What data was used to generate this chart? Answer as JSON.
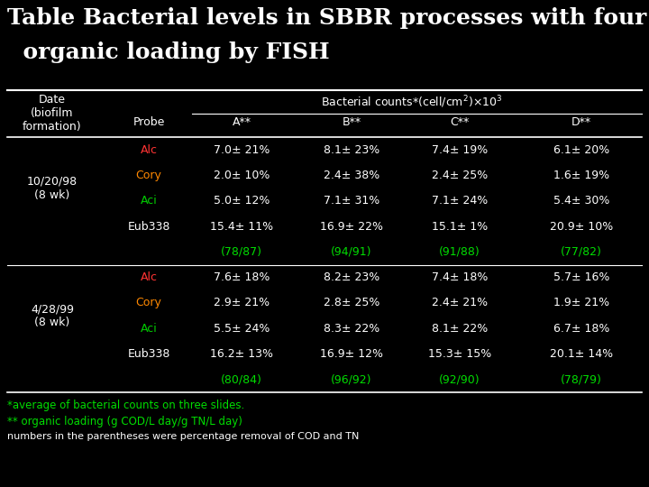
{
  "title_line1": "Table Bacterial levels in SBBR processes with four",
  "title_line2": "  organic loading by FISH",
  "bg_color": "#000000",
  "white": "#ffffff",
  "green_color": "#00dd00",
  "col_headers": [
    "A**",
    "B**",
    "C**",
    "D**"
  ],
  "footnote1": "*average of bacterial counts on three slides.",
  "footnote2": "** organic loading (g COD/L day/g TN/L day)",
  "footnote3": "numbers in the parentheses were percentage removal of COD and TN",
  "rows": [
    {
      "probe": "Alc",
      "probe_color": "#ff3333",
      "A": "7.0± 21%",
      "B": "8.1± 23%",
      "C": "7.4± 19%",
      "D": "6.1± 20%"
    },
    {
      "probe": "Cory",
      "probe_color": "#ff8800",
      "A": "2.0± 10%",
      "B": "2.4± 38%",
      "C": "2.4± 25%",
      "D": "1.6± 19%"
    },
    {
      "probe": "Aci",
      "probe_color": "#00cc00",
      "A": "5.0± 12%",
      "B": "7.1± 31%",
      "C": "7.1± 24%",
      "D": "5.4± 30%"
    },
    {
      "probe": "Eub338",
      "probe_color": "#ffffff",
      "A": "15.4± 11%",
      "B": "16.9± 22%",
      "C": "15.1± 1%",
      "D": "20.9± 10%"
    },
    {
      "probe": "",
      "probe_color": "#00cc00",
      "A": "(78/87)",
      "B": "(94/91)",
      "C": "(91/88)",
      "D": "(77/82)",
      "is_paren": true
    },
    {
      "probe": "Alc",
      "probe_color": "#ff3333",
      "A": "7.6± 18%",
      "B": "8.2± 23%",
      "C": "7.4± 18%",
      "D": "5.7± 16%"
    },
    {
      "probe": "Cory",
      "probe_color": "#ff8800",
      "A": "2.9± 21%",
      "B": "2.8± 25%",
      "C": "2.4± 21%",
      "D": "1.9± 21%"
    },
    {
      "probe": "Aci",
      "probe_color": "#00cc00",
      "A": "5.5± 24%",
      "B": "8.3± 22%",
      "C": "8.1± 22%",
      "D": "6.7± 18%"
    },
    {
      "probe": "Eub338",
      "probe_color": "#ffffff",
      "A": "16.2± 13%",
      "B": "16.9± 12%",
      "C": "15.3± 15%",
      "D": "20.1± 14%"
    },
    {
      "probe": "",
      "probe_color": "#00cc00",
      "A": "(80/84)",
      "B": "(96/92)",
      "C": "(92/90)",
      "D": "(78/79)",
      "is_paren": true
    }
  ],
  "date1": "10/20/98\n(8 wk)",
  "date2": "4/28/99\n(8 wk)",
  "title_fontsize": 18,
  "header_fontsize": 9,
  "data_fontsize": 9,
  "footnote_fontsize": 8.5
}
